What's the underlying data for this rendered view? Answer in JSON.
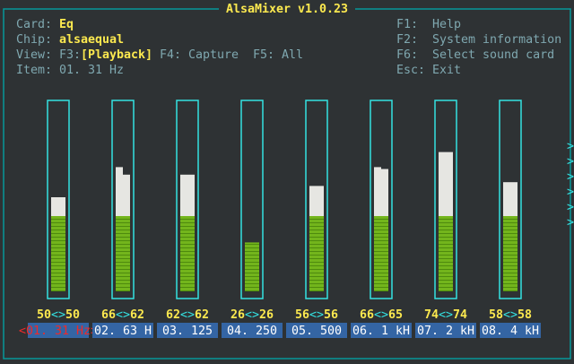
{
  "title": "AlsaMixer v1.0.23",
  "card": {
    "label": "Card:",
    "value": "Eq"
  },
  "chip": {
    "label": "Chip:",
    "value": "alsaequal"
  },
  "view": {
    "label": "View:",
    "f3": "F3:",
    "current": "[Playback]",
    "f4": "F4: Capture",
    "f5": "F5: All"
  },
  "item": {
    "label": "Item:",
    "value": "01. 31 Hz"
  },
  "keys": [
    {
      "key": "F1:",
      "action": "Help"
    },
    {
      "key": "F2:",
      "action": "System information"
    },
    {
      "key": "F6:",
      "action": "Select sound card"
    },
    {
      "key": "Esc:",
      "action": "Exit"
    }
  ],
  "separator": "<>",
  "scroll_indicator": ">",
  "channels": [
    {
      "name": "<01. 31 Hz>",
      "left": 50,
      "right": 50
    },
    {
      "name": "02. 63 H",
      "left": 66,
      "right": 62
    },
    {
      "name": "03. 125",
      "left": 62,
      "right": 62
    },
    {
      "name": "04. 250",
      "left": 26,
      "right": 26
    },
    {
      "name": "05. 500",
      "left": 56,
      "right": 56
    },
    {
      "name": "06. 1 kH",
      "left": 66,
      "right": 65
    },
    {
      "name": "07. 2 kH",
      "left": 74,
      "right": 74
    },
    {
      "name": "08. 4 kH",
      "left": 58,
      "right": 58
    }
  ]
}
